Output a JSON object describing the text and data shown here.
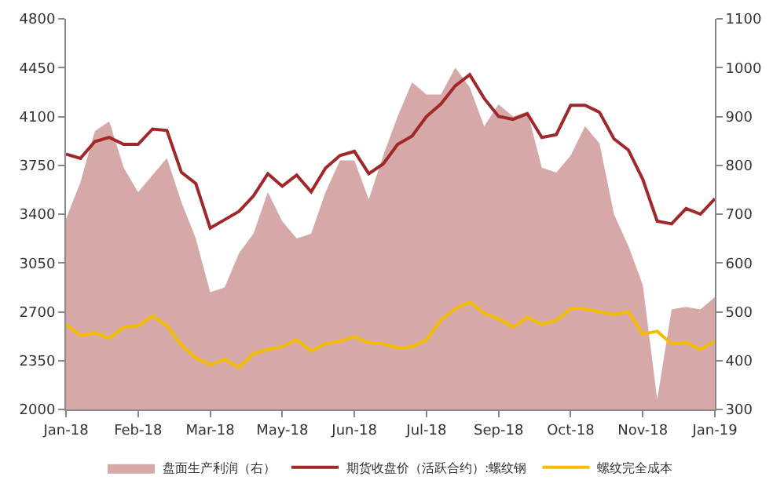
{
  "chart_data": {
    "type": "line",
    "categories": [
      "Jan-18",
      null,
      null,
      null,
      null,
      "Feb-18",
      null,
      null,
      null,
      null,
      "Mar-18",
      null,
      null,
      null,
      null,
      "May-18",
      null,
      null,
      null,
      null,
      "Jun-18",
      null,
      null,
      null,
      null,
      "Jul-18",
      null,
      null,
      null,
      null,
      "Sep-18",
      null,
      null,
      null,
      null,
      "Oct-18",
      null,
      null,
      null,
      null,
      "Nov-18",
      null,
      null,
      null,
      null,
      "Jan-19"
    ],
    "ylim": [
      2000,
      4800
    ],
    "yticks": [
      2000,
      2350,
      2700,
      3050,
      3400,
      3750,
      4100,
      4450,
      4800
    ],
    "y2lim": [
      300,
      1100
    ],
    "y2ticks": [
      300,
      400,
      500,
      600,
      700,
      800,
      900,
      1000,
      1100
    ],
    "legend": "bottom",
    "marker": "none",
    "line_style": "solid",
    "series": [
      {
        "name": "盘面生产利润（右）",
        "type": "area",
        "axis": "y2",
        "color": "#d6a8a8",
        "values": [
          690,
          765,
          870,
          890,
          795,
          745,
          780,
          815,
          725,
          650,
          540,
          550,
          620,
          660,
          745,
          685,
          650,
          660,
          745,
          810,
          810,
          730,
          820,
          900,
          970,
          945,
          945,
          1000,
          960,
          880,
          925,
          900,
          910,
          795,
          785,
          820,
          880,
          845,
          700,
          635,
          555,
          320,
          505,
          510,
          505,
          530
        ]
      },
      {
        "name": "期货收盘价（活跃合约）:螺纹钢",
        "axis": "y",
        "color": "#a0282a",
        "values": [
          3830,
          3800,
          3920,
          3950,
          3900,
          3900,
          4010,
          4000,
          3700,
          3620,
          3300,
          3360,
          3420,
          3530,
          3690,
          3600,
          3680,
          3560,
          3730,
          3820,
          3850,
          3690,
          3760,
          3900,
          3960,
          4100,
          4190,
          4320,
          4400,
          4230,
          4100,
          4080,
          4120,
          3950,
          3970,
          4180,
          4180,
          4130,
          3940,
          3860,
          3650,
          3350,
          3330,
          3440,
          3400,
          3510
        ]
      },
      {
        "name": "螺纹完全成本",
        "axis": "y",
        "color": "#f2bd00",
        "values": [
          2610,
          2530,
          2550,
          2510,
          2590,
          2600,
          2670,
          2600,
          2460,
          2370,
          2320,
          2360,
          2300,
          2400,
          2430,
          2450,
          2500,
          2420,
          2470,
          2490,
          2520,
          2480,
          2470,
          2440,
          2450,
          2500,
          2640,
          2720,
          2770,
          2690,
          2650,
          2590,
          2660,
          2610,
          2640,
          2720,
          2720,
          2700,
          2680,
          2700,
          2540,
          2560,
          2470,
          2480,
          2430,
          2490
        ]
      }
    ]
  }
}
